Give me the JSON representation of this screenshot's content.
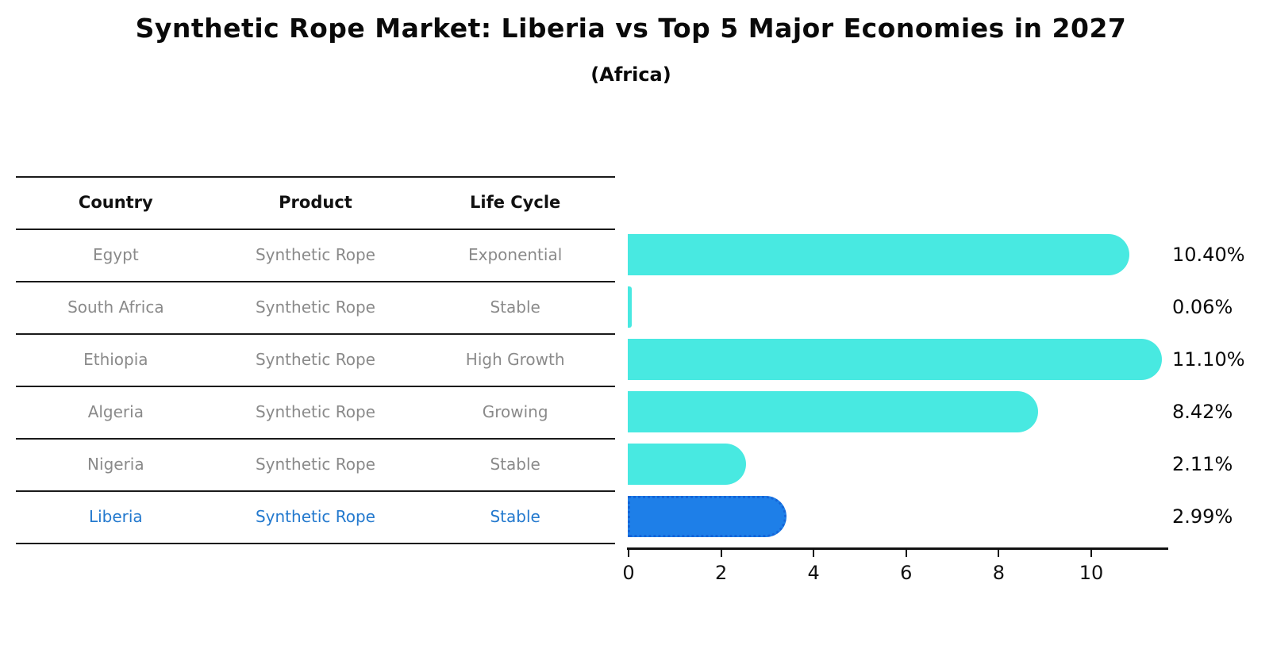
{
  "title": "Synthetic Rope Market: Liberia vs Top 5 Major Economies in 2027",
  "subtitle": "(Africa)",
  "table": {
    "headers": [
      "Country",
      "Product",
      "Life Cycle"
    ],
    "rows": [
      {
        "country": "Egypt",
        "product": "Synthetic Rope",
        "life_cycle": "Exponential",
        "highlight": false
      },
      {
        "country": "South Africa",
        "product": "Synthetic Rope",
        "life_cycle": "Stable",
        "highlight": false
      },
      {
        "country": "Ethiopia",
        "product": "Synthetic Rope",
        "life_cycle": "High Growth",
        "highlight": false
      },
      {
        "country": "Algeria",
        "product": "Synthetic Rope",
        "life_cycle": "Growing",
        "highlight": false
      },
      {
        "country": "Nigeria",
        "product": "Synthetic Rope",
        "life_cycle": "Stable",
        "highlight": false
      },
      {
        "country": "Liberia",
        "product": "Synthetic Rope",
        "life_cycle": "Stable",
        "highlight": true
      }
    ]
  },
  "chart_data": {
    "type": "bar",
    "orientation": "horizontal",
    "title": "Synthetic Rope Market: Liberia vs Top 5 Major Economies in 2027",
    "subtitle": "(Africa)",
    "categories": [
      "Egypt",
      "South Africa",
      "Ethiopia",
      "Algeria",
      "Nigeria",
      "Liberia"
    ],
    "values": [
      10.4,
      0.06,
      11.1,
      8.42,
      2.11,
      2.99
    ],
    "value_labels": [
      "10.40%",
      "0.06%",
      "11.10%",
      "8.42%",
      "2.11%",
      "2.99%"
    ],
    "xlabel": "",
    "ylabel": "",
    "xticks": [
      0,
      2,
      4,
      6,
      8,
      10
    ],
    "xlim": [
      0,
      11.67
    ],
    "grid": false,
    "legend": false,
    "highlight_index": 5,
    "highlight_style": "dotted-border"
  },
  "colors": {
    "bar_default": "#48E9E1",
    "bar_highlight": "#1E7FE8",
    "bar_highlight_border": "#1565D8",
    "highlight_text": "#2379CE",
    "cell_text": "#8A8A8A",
    "axis": "#111111"
  }
}
